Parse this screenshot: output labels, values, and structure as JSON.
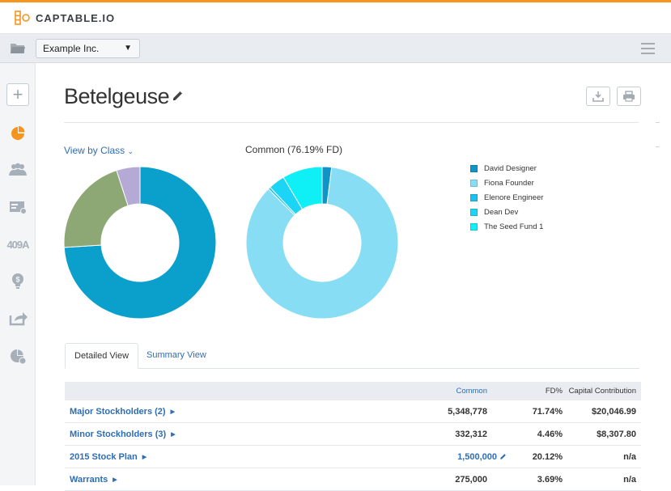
{
  "brand": {
    "name": "CAPTABLE.IO",
    "accent": "#f7941d",
    "link": "#2d6db3"
  },
  "company_selector": {
    "selected": "Example Inc.",
    "caret": "▼"
  },
  "sidebar": {
    "items": [
      {
        "icon": "add-icon"
      },
      {
        "icon": "pie-chart-icon"
      },
      {
        "icon": "people-icon"
      },
      {
        "icon": "certificate-icon"
      },
      {
        "icon": "409a-icon",
        "label": "409A"
      },
      {
        "icon": "lightbulb-icon"
      },
      {
        "icon": "share-icon"
      },
      {
        "icon": "pie-clock-icon"
      }
    ]
  },
  "page": {
    "title": "Betelgeuse"
  },
  "charts": {
    "view_by": "View by Class",
    "common_label": "Common (76.19% FD)"
  },
  "chart_data": [
    {
      "type": "pie",
      "series": [
        {
          "values": [
            74.0,
            21.0,
            5.0
          ],
          "colors": [
            "#0ba0cc",
            "#8ea875",
            "#b5a9d6"
          ]
        }
      ]
    },
    {
      "type": "pie",
      "categories": [
        "David Designer",
        "Fiona Founder",
        "Elenore Engineer",
        "Dean Dev",
        "The Seed Fund 1"
      ],
      "series": [
        {
          "values": [
            2.0,
            85.5,
            0.5,
            3.5,
            8.5
          ],
          "colors": [
            "#0e95c8",
            "#87ddf3",
            "#1cc2ed",
            "#1cd4f5",
            "#0ef0f5"
          ]
        }
      ]
    }
  ],
  "legend": [
    {
      "label": "David Designer",
      "color": "#0e95c8"
    },
    {
      "label": "Fiona Founder",
      "color": "#87ddf3"
    },
    {
      "label": "Elenore Engineer",
      "color": "#1cc2ed"
    },
    {
      "label": "Dean Dev",
      "color": "#1cd4f5"
    },
    {
      "label": "The Seed Fund 1",
      "color": "#0ef0f5"
    }
  ],
  "tabs": {
    "detailed": "Detailed View",
    "summary": "Summary View"
  },
  "table": {
    "headers": {
      "common": "Common",
      "fd": "FD%",
      "capital": "Capital Contribution"
    },
    "rows": [
      {
        "name": "Major Stockholders (2)",
        "common": "5,348,778",
        "fd": "71.74%",
        "capital": "$20,046.99"
      },
      {
        "name": "Minor Stockholders (3)",
        "common": "332,312",
        "fd": "4.46%",
        "capital": "$8,307.80"
      },
      {
        "name": "2015 Stock Plan",
        "common": "1,500,000",
        "fd": "20.12%",
        "capital": "n/a"
      },
      {
        "name": "Warrants",
        "common": "275,000",
        "fd": "3.69%",
        "capital": "n/a"
      }
    ]
  }
}
